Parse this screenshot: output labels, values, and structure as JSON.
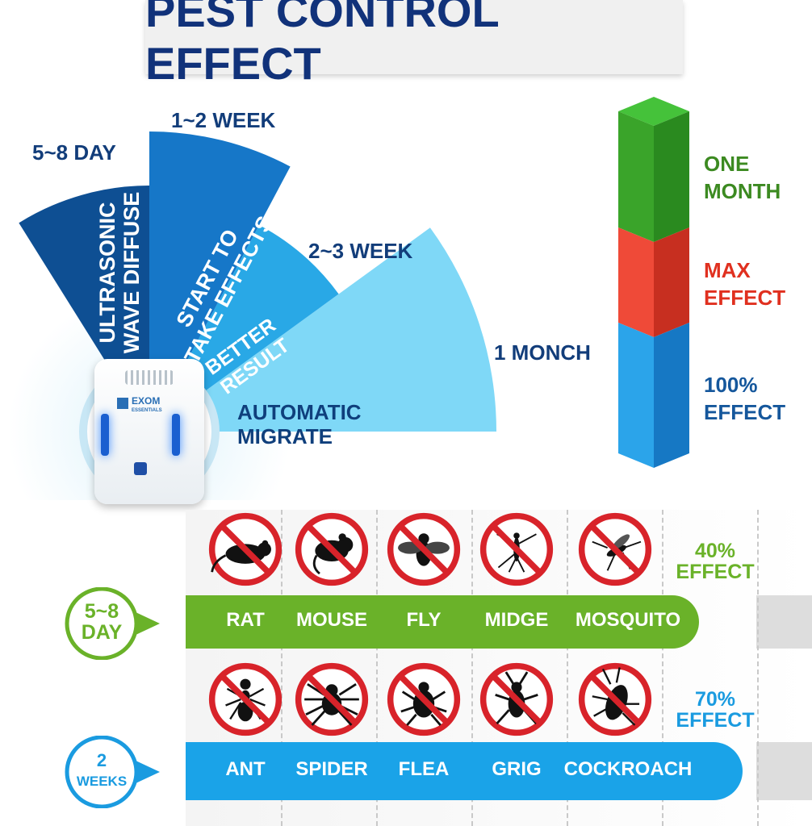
{
  "title": "PEST CONTROL EFFECT",
  "fan": {
    "times": [
      "5~8 DAY",
      "1~2 WEEK",
      "2~3 WEEK",
      "1 MONCH"
    ],
    "stages": [
      {
        "lines": [
          "ULTRASONIC",
          "WAVE DIFFUSE"
        ]
      },
      {
        "lines": [
          "START TO",
          "TAKE EFFECTS"
        ]
      },
      {
        "lines": [
          "BETTER",
          "RESULT"
        ]
      },
      {
        "lines": [
          "AUTOMATIC",
          "MIGRATE"
        ]
      }
    ],
    "colors": [
      "#0e4f93",
      "#1677c8",
      "#29a8e6",
      "#7fd8f7"
    ]
  },
  "device": {
    "brand": "EXOM",
    "brand_sub": "ESSENTIALS"
  },
  "legend_bar": {
    "segments": [
      {
        "lines": [
          "ONE",
          "MONTH"
        ],
        "color": "#3aa42a"
      },
      {
        "lines": [
          "MAX",
          "EFFECT"
        ],
        "color": "#e53a2b"
      },
      {
        "lines": [
          "100%",
          "EFFECT"
        ],
        "color": "#1e8fd8"
      }
    ]
  },
  "rows": [
    {
      "badge": [
        "5~8",
        "DAY"
      ],
      "badge_color": "#6ab229",
      "bar_color": "#6ab229",
      "effect": [
        "40%",
        "EFFECT"
      ],
      "effect_color": "#6ab229",
      "pests": [
        {
          "name": "RAT",
          "icon": "rat-icon"
        },
        {
          "name": "MOUSE",
          "icon": "mouse-icon"
        },
        {
          "name": "FLY",
          "icon": "fly-icon"
        },
        {
          "name": "MIDGE",
          "icon": "midge-icon"
        },
        {
          "name": "MOSQUITO",
          "icon": "mosquito-icon"
        }
      ]
    },
    {
      "badge": [
        "2",
        "WEEKS"
      ],
      "badge_color": "#1a9be0",
      "bar_color": "#1aa3e8",
      "effect": [
        "70%",
        "EFFECT"
      ],
      "effect_color": "#1a9be0",
      "pests": [
        {
          "name": "ANT",
          "icon": "ant-icon"
        },
        {
          "name": "SPIDER",
          "icon": "spider-icon"
        },
        {
          "name": "FLEA",
          "icon": "flea-icon"
        },
        {
          "name": "GRIG",
          "icon": "grig-icon"
        },
        {
          "name": "COCKROACH",
          "icon": "cockroach-icon"
        }
      ]
    }
  ]
}
